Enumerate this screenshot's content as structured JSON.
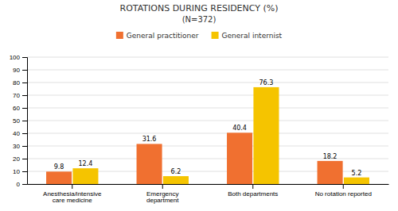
{
  "chart_data": {
    "type": "bar",
    "title": "ROTATIONS DURING RESIDENCY (%)",
    "subtitle": "(N=372)",
    "categories": [
      "Anesthesia/intensive\ncare medicine",
      "Emergency\ndepartment",
      "Both departments",
      "No rotation reported"
    ],
    "series": [
      {
        "name": "General practitioner",
        "color": "#F07030",
        "values": [
          9.8,
          31.6,
          40.4,
          18.2
        ]
      },
      {
        "name": "General internist",
        "color": "#F5C400",
        "values": [
          12.4,
          6.2,
          76.3,
          5.2
        ]
      }
    ],
    "ylim": [
      0,
      100
    ],
    "yticks": [
      0,
      10,
      20,
      30,
      40,
      50,
      60,
      70,
      80,
      90,
      100
    ],
    "grid": true,
    "legend": "top",
    "data_labels": true
  }
}
